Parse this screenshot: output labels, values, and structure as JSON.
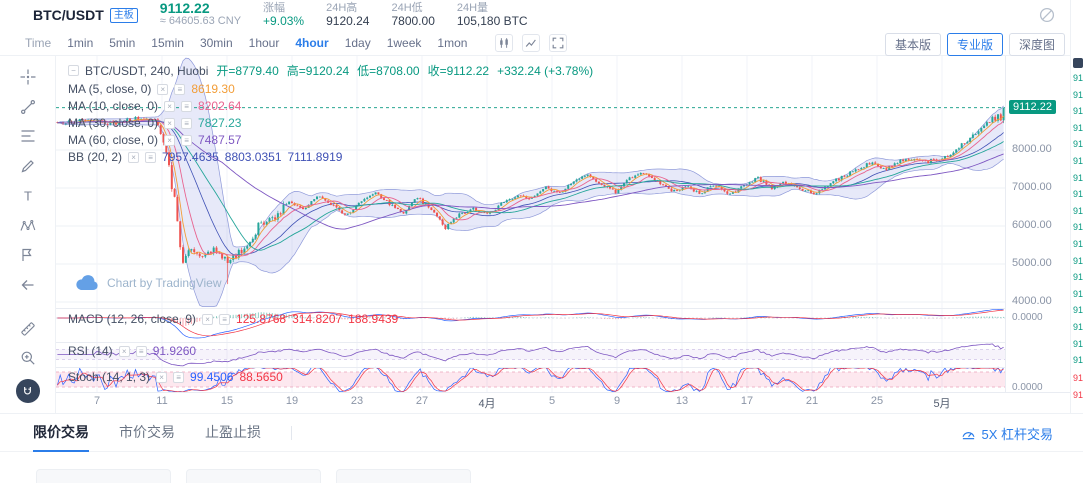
{
  "colors": {
    "accent": "#2b7de9",
    "up": "#089981",
    "down": "#f23645",
    "band_fill": "rgba(108,120,216,0.16)"
  },
  "header": {
    "symbol": "BTC/USDT",
    "badge": "主板",
    "price": "9112.22",
    "cny": "≈ 64605.63 CNY",
    "stats": [
      {
        "label": "涨幅",
        "value": "+9.03%"
      },
      {
        "label": "24H高",
        "value": "9120.24"
      },
      {
        "label": "24H低",
        "value": "7800.00"
      },
      {
        "label": "24H量",
        "value": "105,180 BTC"
      }
    ]
  },
  "toolbar": {
    "time_label": "Time",
    "intervals": [
      "1min",
      "5min",
      "15min",
      "30min",
      "1hour",
      "4hour",
      "1day",
      "1week",
      "1mon"
    ],
    "active_interval": "4hour",
    "view_buttons": [
      "基本版",
      "专业版",
      "深度图"
    ],
    "active_view": "专业版"
  },
  "legend": {
    "title": "BTC/USDT, 240, Huobi",
    "ohlc": [
      "开=8779.40",
      "高=9120.24",
      "低=8708.00",
      "收=9112.22",
      "+332.24 (+3.78%)"
    ],
    "rows": [
      {
        "name": "MA (5, close, 0)",
        "v1": "8619.30",
        "c1": "#f29d38"
      },
      {
        "name": "MA (10, close, 0)",
        "v1": "8202.64",
        "c1": "#e8638f"
      },
      {
        "name": "MA (30, close, 0)",
        "v1": "7827.23",
        "c1": "#26a69a"
      },
      {
        "name": "MA (60, close, 0)",
        "v1": "7487.57",
        "c1": "#7e57c2"
      },
      {
        "name": "BB (20, 2)",
        "v1": "7957.4635",
        "v2": "8803.0351",
        "v3": "7111.8919",
        "c1": "#3f51b5"
      }
    ]
  },
  "panes": {
    "macd": {
      "name": "MACD (12, 26, close, 9)",
      "v1": "125.8768",
      "v2": "314.8207",
      "v3": "188.9439",
      "c1": "#f23645",
      "c2": "#f23645",
      "c3": "#f23645",
      "axis": "0.0000"
    },
    "rsi": {
      "name": "RSI (14)",
      "v1": "91.9260",
      "c1": "#7e57c2"
    },
    "stoch": {
      "name": "Stoch (14, 1, 3)",
      "v1": "99.4506",
      "v2": "88.5650",
      "c1": "#2962ff",
      "c2": "#f23645",
      "axis": "0.0000"
    }
  },
  "watermark": "Chart by TradingView",
  "axis": {
    "price_ticks": [
      "8000.00",
      "7000.00",
      "6000.00",
      "5000.00",
      "4000.00"
    ],
    "current_price": "9112.22",
    "dates": [
      "7",
      "11",
      "15",
      "19",
      "23",
      "27",
      "4月",
      "5",
      "9",
      "13",
      "17",
      "21",
      "25",
      "5月"
    ]
  },
  "bottom": {
    "tabs": [
      "限价交易",
      "市价交易",
      "止盈止损"
    ],
    "active_tab": "限价交易",
    "leverage": "5X 杠杆交易"
  },
  "icons": {
    "header": [
      "circle-slash"
    ],
    "toolbar": [
      "chart-style",
      "indicator",
      "fullscreen"
    ],
    "drawbar": [
      "crosshair",
      "trend-line",
      "fibonacci",
      "brush",
      "text",
      "xabcd-pattern",
      "forecast",
      "hide-panel-arrow",
      "ruler",
      "zoom-in",
      "magnet"
    ],
    "leverage": "gauge"
  },
  "right_strip": {
    "fragment": "91",
    "ask_rows": 18,
    "bid_rows": 2
  },
  "chart_data": {
    "type": "candlestick",
    "symbol": "BTC/USDT",
    "interval": "240",
    "exchange": "Huobi",
    "candle_count": 340,
    "last_candle": {
      "open": 8779.4,
      "high": 9120.24,
      "low": 8708.0,
      "close": 9112.22
    },
    "change_text": "+332.24 (+3.78%)",
    "y_ticks": [
      8000,
      7000,
      6000,
      5000,
      4000
    ],
    "x_labels": [
      "7",
      "11",
      "15",
      "19",
      "23",
      "27",
      "4月",
      "5",
      "9",
      "13",
      "17",
      "21",
      "25",
      "5月"
    ],
    "up_color": "#26a69a",
    "down_color": "#ef5350",
    "price_path_anchors": [
      [
        0,
        8680
      ],
      [
        0.03,
        8780
      ],
      [
        0.06,
        8700
      ],
      [
        0.09,
        8860
      ],
      [
        0.105,
        8750
      ],
      [
        0.115,
        7950
      ],
      [
        0.125,
        6500
      ],
      [
        0.132,
        4950
      ],
      [
        0.14,
        5500
      ],
      [
        0.15,
        5150
      ],
      [
        0.165,
        5350
      ],
      [
        0.18,
        5050
      ],
      [
        0.2,
        5450
      ],
      [
        0.215,
        6100
      ],
      [
        0.23,
        6250
      ],
      [
        0.245,
        6650
      ],
      [
        0.26,
        6450
      ],
      [
        0.275,
        6800
      ],
      [
        0.29,
        6550
      ],
      [
        0.305,
        6250
      ],
      [
        0.32,
        6650
      ],
      [
        0.335,
        6900
      ],
      [
        0.35,
        6600
      ],
      [
        0.365,
        6350
      ],
      [
        0.38,
        6750
      ],
      [
        0.395,
        6450
      ],
      [
        0.41,
        5950
      ],
      [
        0.425,
        6300
      ],
      [
        0.44,
        6450
      ],
      [
        0.455,
        6300
      ],
      [
        0.47,
        6600
      ],
      [
        0.485,
        6800
      ],
      [
        0.5,
        6700
      ],
      [
        0.515,
        7050
      ],
      [
        0.53,
        6850
      ],
      [
        0.545,
        7200
      ],
      [
        0.56,
        7350
      ],
      [
        0.575,
        7100
      ],
      [
        0.59,
        6900
      ],
      [
        0.605,
        7250
      ],
      [
        0.62,
        7400
      ],
      [
        0.635,
        7150
      ],
      [
        0.65,
        6900
      ],
      [
        0.665,
        7050
      ],
      [
        0.68,
        6850
      ],
      [
        0.695,
        7100
      ],
      [
        0.71,
        6800
      ],
      [
        0.725,
        7050
      ],
      [
        0.74,
        7250
      ],
      [
        0.755,
        7000
      ],
      [
        0.77,
        7150
      ],
      [
        0.785,
        6950
      ],
      [
        0.8,
        6850
      ],
      [
        0.815,
        7100
      ],
      [
        0.83,
        7300
      ],
      [
        0.845,
        7500
      ],
      [
        0.86,
        7650
      ],
      [
        0.875,
        7500
      ],
      [
        0.89,
        7700
      ],
      [
        0.905,
        7750
      ],
      [
        0.92,
        7700
      ],
      [
        0.935,
        7780
      ],
      [
        0.95,
        8000
      ],
      [
        0.965,
        8300
      ],
      [
        0.975,
        8550
      ],
      [
        0.985,
        8780
      ],
      [
        0.993,
        8850
      ],
      [
        1,
        9112.22
      ]
    ],
    "indicators": {
      "ma_windows": [
        5,
        10,
        30,
        60
      ],
      "ma_colors": [
        "#f29d38",
        "#e8638f",
        "#26a69a",
        "#7e57c2"
      ],
      "bb": {
        "window": 20,
        "mult": 2
      },
      "macd": [
        12,
        26,
        9
      ],
      "rsi": 14,
      "stoch": [
        14,
        1,
        3
      ]
    }
  }
}
